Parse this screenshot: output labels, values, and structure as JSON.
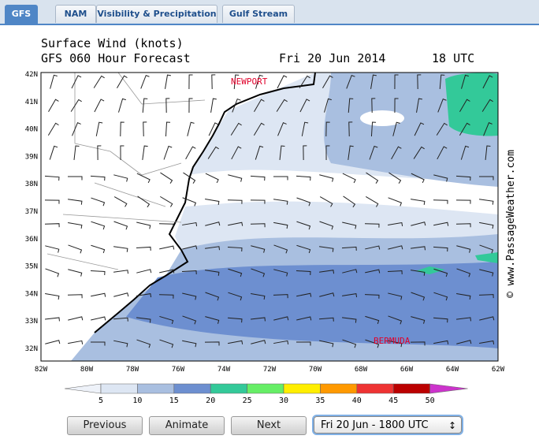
{
  "tabs": [
    {
      "label": "GFS",
      "active": true
    },
    {
      "label": "NAM",
      "active": false
    },
    {
      "label": "Visibility & Precipitation",
      "active": false
    },
    {
      "label": "Gulf Stream",
      "active": false
    }
  ],
  "map": {
    "title": "Surface Wind (knots)",
    "subtitle": "GFS 060 Hour Forecast",
    "date": "Fri 20 Jun 2014",
    "time": "18 UTC",
    "lat_labels": [
      "42N",
      "41N",
      "40N",
      "39N",
      "38N",
      "37N",
      "36N",
      "35N",
      "34N",
      "33N",
      "32N"
    ],
    "lon_labels": [
      "82W",
      "80W",
      "78W",
      "76W",
      "74W",
      "72W",
      "70W",
      "68W",
      "66W",
      "64W",
      "62W"
    ],
    "places": [
      "NEWPORT",
      "BERMUDA"
    ],
    "credit": "© www.PassageWeather.com"
  },
  "legend": {
    "labels": [
      "5",
      "10",
      "15",
      "20",
      "25",
      "30",
      "35",
      "40",
      "45",
      "50"
    ],
    "colors": [
      "#eef2f9",
      "#dde6f3",
      "#a9bfe0",
      "#6d8fd0",
      "#33c999",
      "#66ee66",
      "#ffee00",
      "#ff9900",
      "#ee3333",
      "#bb0000",
      "#cc33cc"
    ]
  },
  "controls": {
    "buttons": [
      "Previous",
      "Animate",
      "Next"
    ],
    "select": "Fri 20 Jun - 1800 UTC"
  }
}
